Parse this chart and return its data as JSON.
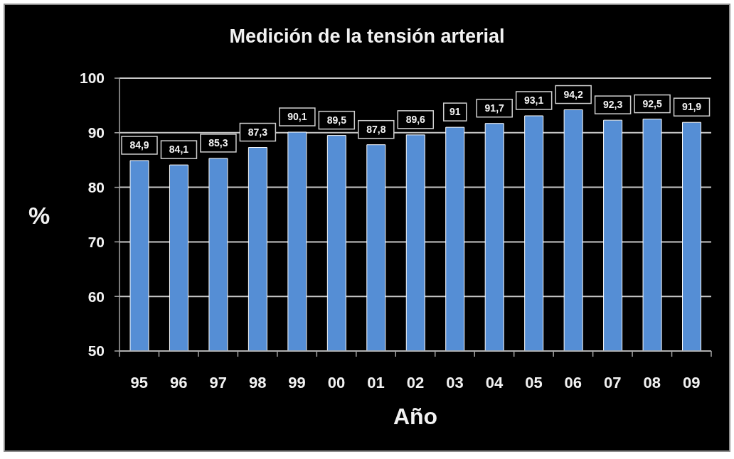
{
  "chart_data": {
    "type": "bar",
    "title": "Medición de la tensión arterial",
    "xlabel": "Año",
    "ylabel": "%",
    "categories": [
      "95",
      "96",
      "97",
      "98",
      "99",
      "00",
      "01",
      "02",
      "03",
      "04",
      "05",
      "06",
      "07",
      "08",
      "09"
    ],
    "values": [
      84.9,
      84.1,
      85.3,
      87.3,
      90.1,
      89.5,
      87.8,
      89.6,
      91,
      91.7,
      93.1,
      94.2,
      92.3,
      92.5,
      91.9
    ],
    "value_labels": [
      "84,9",
      "84,1",
      "85,3",
      "87,3",
      "90,1",
      "89,5",
      "87,8",
      "89,6",
      "91",
      "91,7",
      "93,1",
      "94,2",
      "92,3",
      "92,5",
      "91,9"
    ],
    "color": "#558ed5",
    "ylim": [
      50,
      100
    ],
    "yticks": [
      50,
      60,
      70,
      80,
      90,
      100
    ],
    "grid": "y"
  }
}
